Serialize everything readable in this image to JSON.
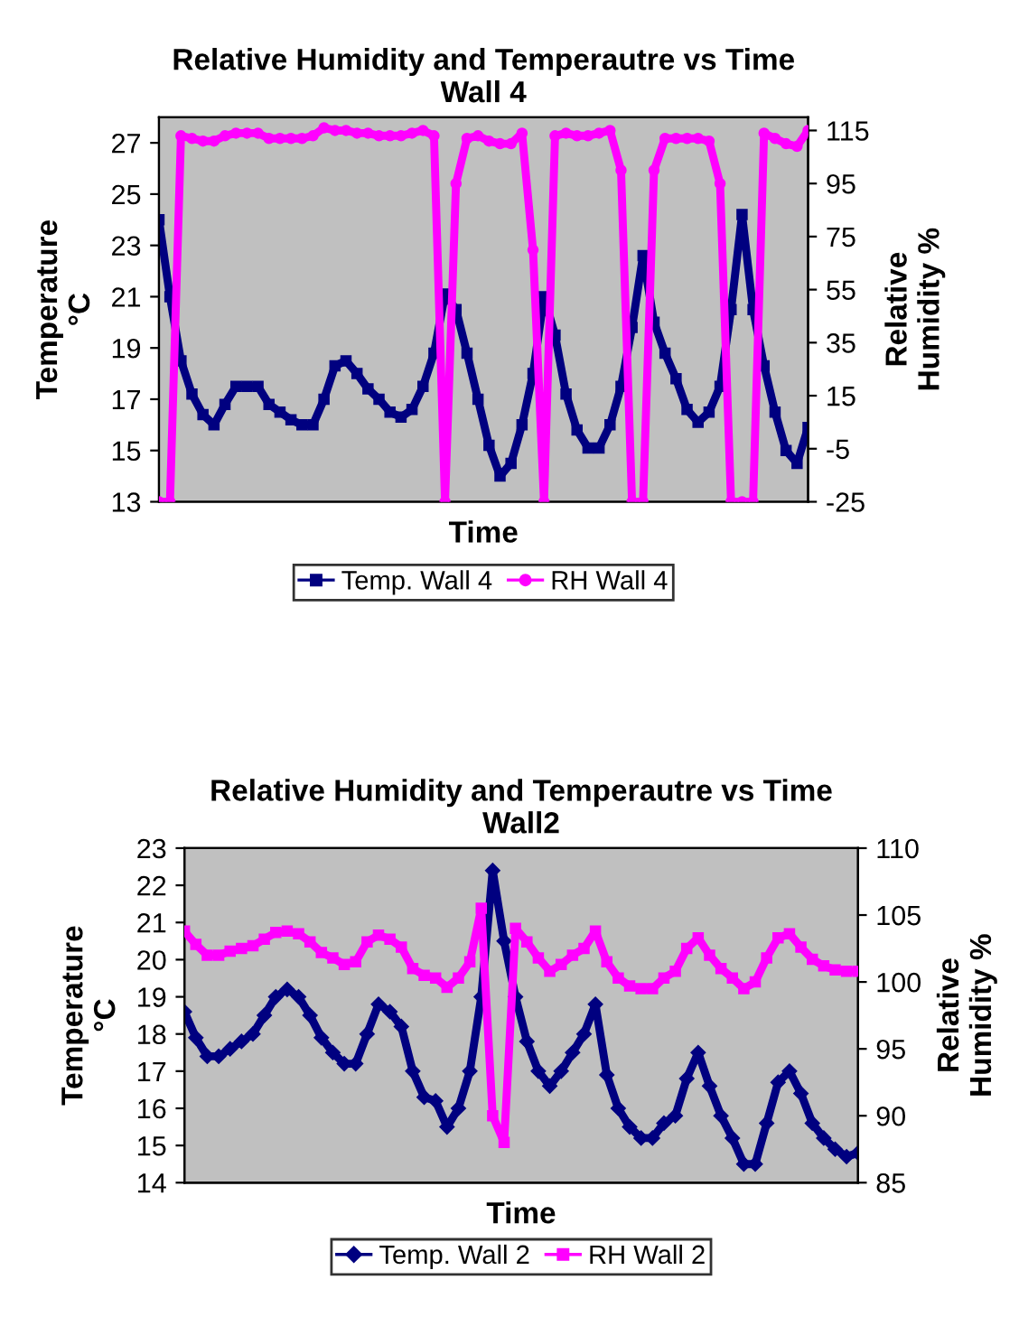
{
  "chart_data": [
    {
      "type": "line",
      "title": "Relative Humidity and Temperautre vs Time\nWall 4",
      "xlabel": "Time",
      "ylabel": "Temperature\n°C",
      "y2label": "Relative\nHumidity %",
      "categories": [
        null,
        null,
        null,
        null,
        null,
        null,
        null,
        null,
        null,
        null,
        null,
        null,
        null,
        null,
        null,
        null,
        null,
        null,
        null,
        null,
        null,
        null,
        null,
        null,
        null,
        null,
        null,
        null,
        null,
        null,
        null,
        null,
        null,
        null,
        null,
        null,
        null,
        null,
        null,
        null,
        null,
        null,
        null,
        null,
        null,
        null,
        null,
        null,
        null,
        null,
        null,
        null,
        null,
        null,
        null,
        null,
        null,
        null,
        null,
        null
      ],
      "ylim": [
        13,
        28
      ],
      "yticks": [
        13,
        15,
        17,
        19,
        21,
        23,
        25,
        27
      ],
      "y2lim": [
        -25,
        120
      ],
      "y2ticks": [
        -25,
        -5,
        15,
        35,
        55,
        75,
        95,
        115
      ],
      "legend": "bottom",
      "grid": false,
      "series": [
        {
          "name": "Temp. Wall 4",
          "color": "#000080",
          "marker": "square",
          "values": [
            24.0,
            21.0,
            18.5,
            17.2,
            16.4,
            16.0,
            16.8,
            17.5,
            17.5,
            17.5,
            16.8,
            16.5,
            16.2,
            16.0,
            16.0,
            17.0,
            18.3,
            18.5,
            18.0,
            17.4,
            17.0,
            16.5,
            16.3,
            16.6,
            17.5,
            18.8,
            21.1,
            20.5,
            18.8,
            17.0,
            15.2,
            14.0,
            14.5,
            16.0,
            18.0,
            21.0,
            19.5,
            17.2,
            15.8,
            15.1,
            15.1,
            16.0,
            17.5,
            19.8,
            22.6,
            20.0,
            18.8,
            17.8,
            16.6,
            16.1,
            16.5,
            17.5,
            20.5,
            24.2,
            20.5,
            18.3,
            16.5,
            15.0,
            14.5,
            15.9
          ]
        },
        {
          "name": "RH Wall 4",
          "color": "#ff00ff",
          "marker": "circle",
          "axis": "y2",
          "values": [
            -25,
            -25,
            113,
            112,
            111,
            111,
            113,
            114,
            114,
            114,
            112,
            112,
            112,
            112,
            113,
            116,
            115,
            115,
            114,
            114,
            113,
            113,
            113,
            114,
            115,
            113,
            -25,
            95,
            112,
            113,
            111,
            110,
            110,
            114,
            70,
            -25,
            113,
            114,
            113,
            113,
            114,
            115,
            100,
            -25,
            -25,
            100,
            112,
            112,
            112,
            112,
            111,
            95,
            -25,
            -25,
            -25,
            114,
            112,
            110,
            109,
            115
          ]
        }
      ]
    },
    {
      "type": "line",
      "title": "Relative Humidity and Temperautre vs Time\nWall2",
      "xlabel": "Time",
      "ylabel": "Temperature\n°C",
      "y2label": "Relative\nHumidity %",
      "categories": [
        null,
        null,
        null,
        null,
        null,
        null,
        null,
        null,
        null,
        null,
        null,
        null,
        null,
        null,
        null,
        null,
        null,
        null,
        null,
        null,
        null,
        null,
        null,
        null,
        null,
        null,
        null,
        null,
        null,
        null,
        null,
        null,
        null,
        null,
        null,
        null,
        null,
        null,
        null,
        null,
        null,
        null,
        null,
        null,
        null,
        null,
        null,
        null,
        null,
        null,
        null,
        null,
        null,
        null,
        null,
        null,
        null,
        null,
        null,
        null
      ],
      "ylim": [
        14,
        23
      ],
      "yticks": [
        14,
        15,
        16,
        17,
        18,
        19,
        20,
        21,
        22,
        23
      ],
      "y2lim": [
        85,
        110
      ],
      "y2ticks": [
        85,
        90,
        95,
        100,
        105,
        110
      ],
      "legend": "bottom",
      "grid": false,
      "series": [
        {
          "name": "Temp. Wall 2",
          "color": "#000080",
          "marker": "diamond",
          "values": [
            18.6,
            17.9,
            17.4,
            17.4,
            17.6,
            17.8,
            18.0,
            18.5,
            19.0,
            19.2,
            19.0,
            18.5,
            17.9,
            17.5,
            17.2,
            17.2,
            18.0,
            18.8,
            18.6,
            18.2,
            17.0,
            16.3,
            16.2,
            15.5,
            16.0,
            17.0,
            19.0,
            22.4,
            20.5,
            19.0,
            17.8,
            17.0,
            16.6,
            17.0,
            17.5,
            18.0,
            18.8,
            16.9,
            16.0,
            15.5,
            15.2,
            15.2,
            15.6,
            15.8,
            16.8,
            17.5,
            16.6,
            15.8,
            15.2,
            14.5,
            14.5,
            15.6,
            16.7,
            17.0,
            16.4,
            15.6,
            15.2,
            14.9,
            14.7,
            14.8
          ]
        },
        {
          "name": "RH Wall 2",
          "color": "#ff00ff",
          "marker": "square",
          "axis": "y2",
          "values": [
            103.8,
            102.8,
            102.0,
            102.0,
            102.3,
            102.5,
            102.7,
            103.2,
            103.7,
            103.8,
            103.6,
            103.0,
            102.2,
            101.8,
            101.3,
            101.5,
            103.0,
            103.5,
            103.2,
            102.6,
            101.0,
            100.5,
            100.3,
            99.6,
            100.3,
            101.5,
            105.5,
            90,
            88,
            104.0,
            103.0,
            101.8,
            100.8,
            101.3,
            102.0,
            102.5,
            103.8,
            101.5,
            100.3,
            99.7,
            99.5,
            99.5,
            100.3,
            100.8,
            102.5,
            103.3,
            102.0,
            101.0,
            100.3,
            99.5,
            100.0,
            101.8,
            103.3,
            103.6,
            102.6,
            101.7,
            101.2,
            100.9,
            100.8,
            100.8
          ]
        }
      ]
    }
  ]
}
